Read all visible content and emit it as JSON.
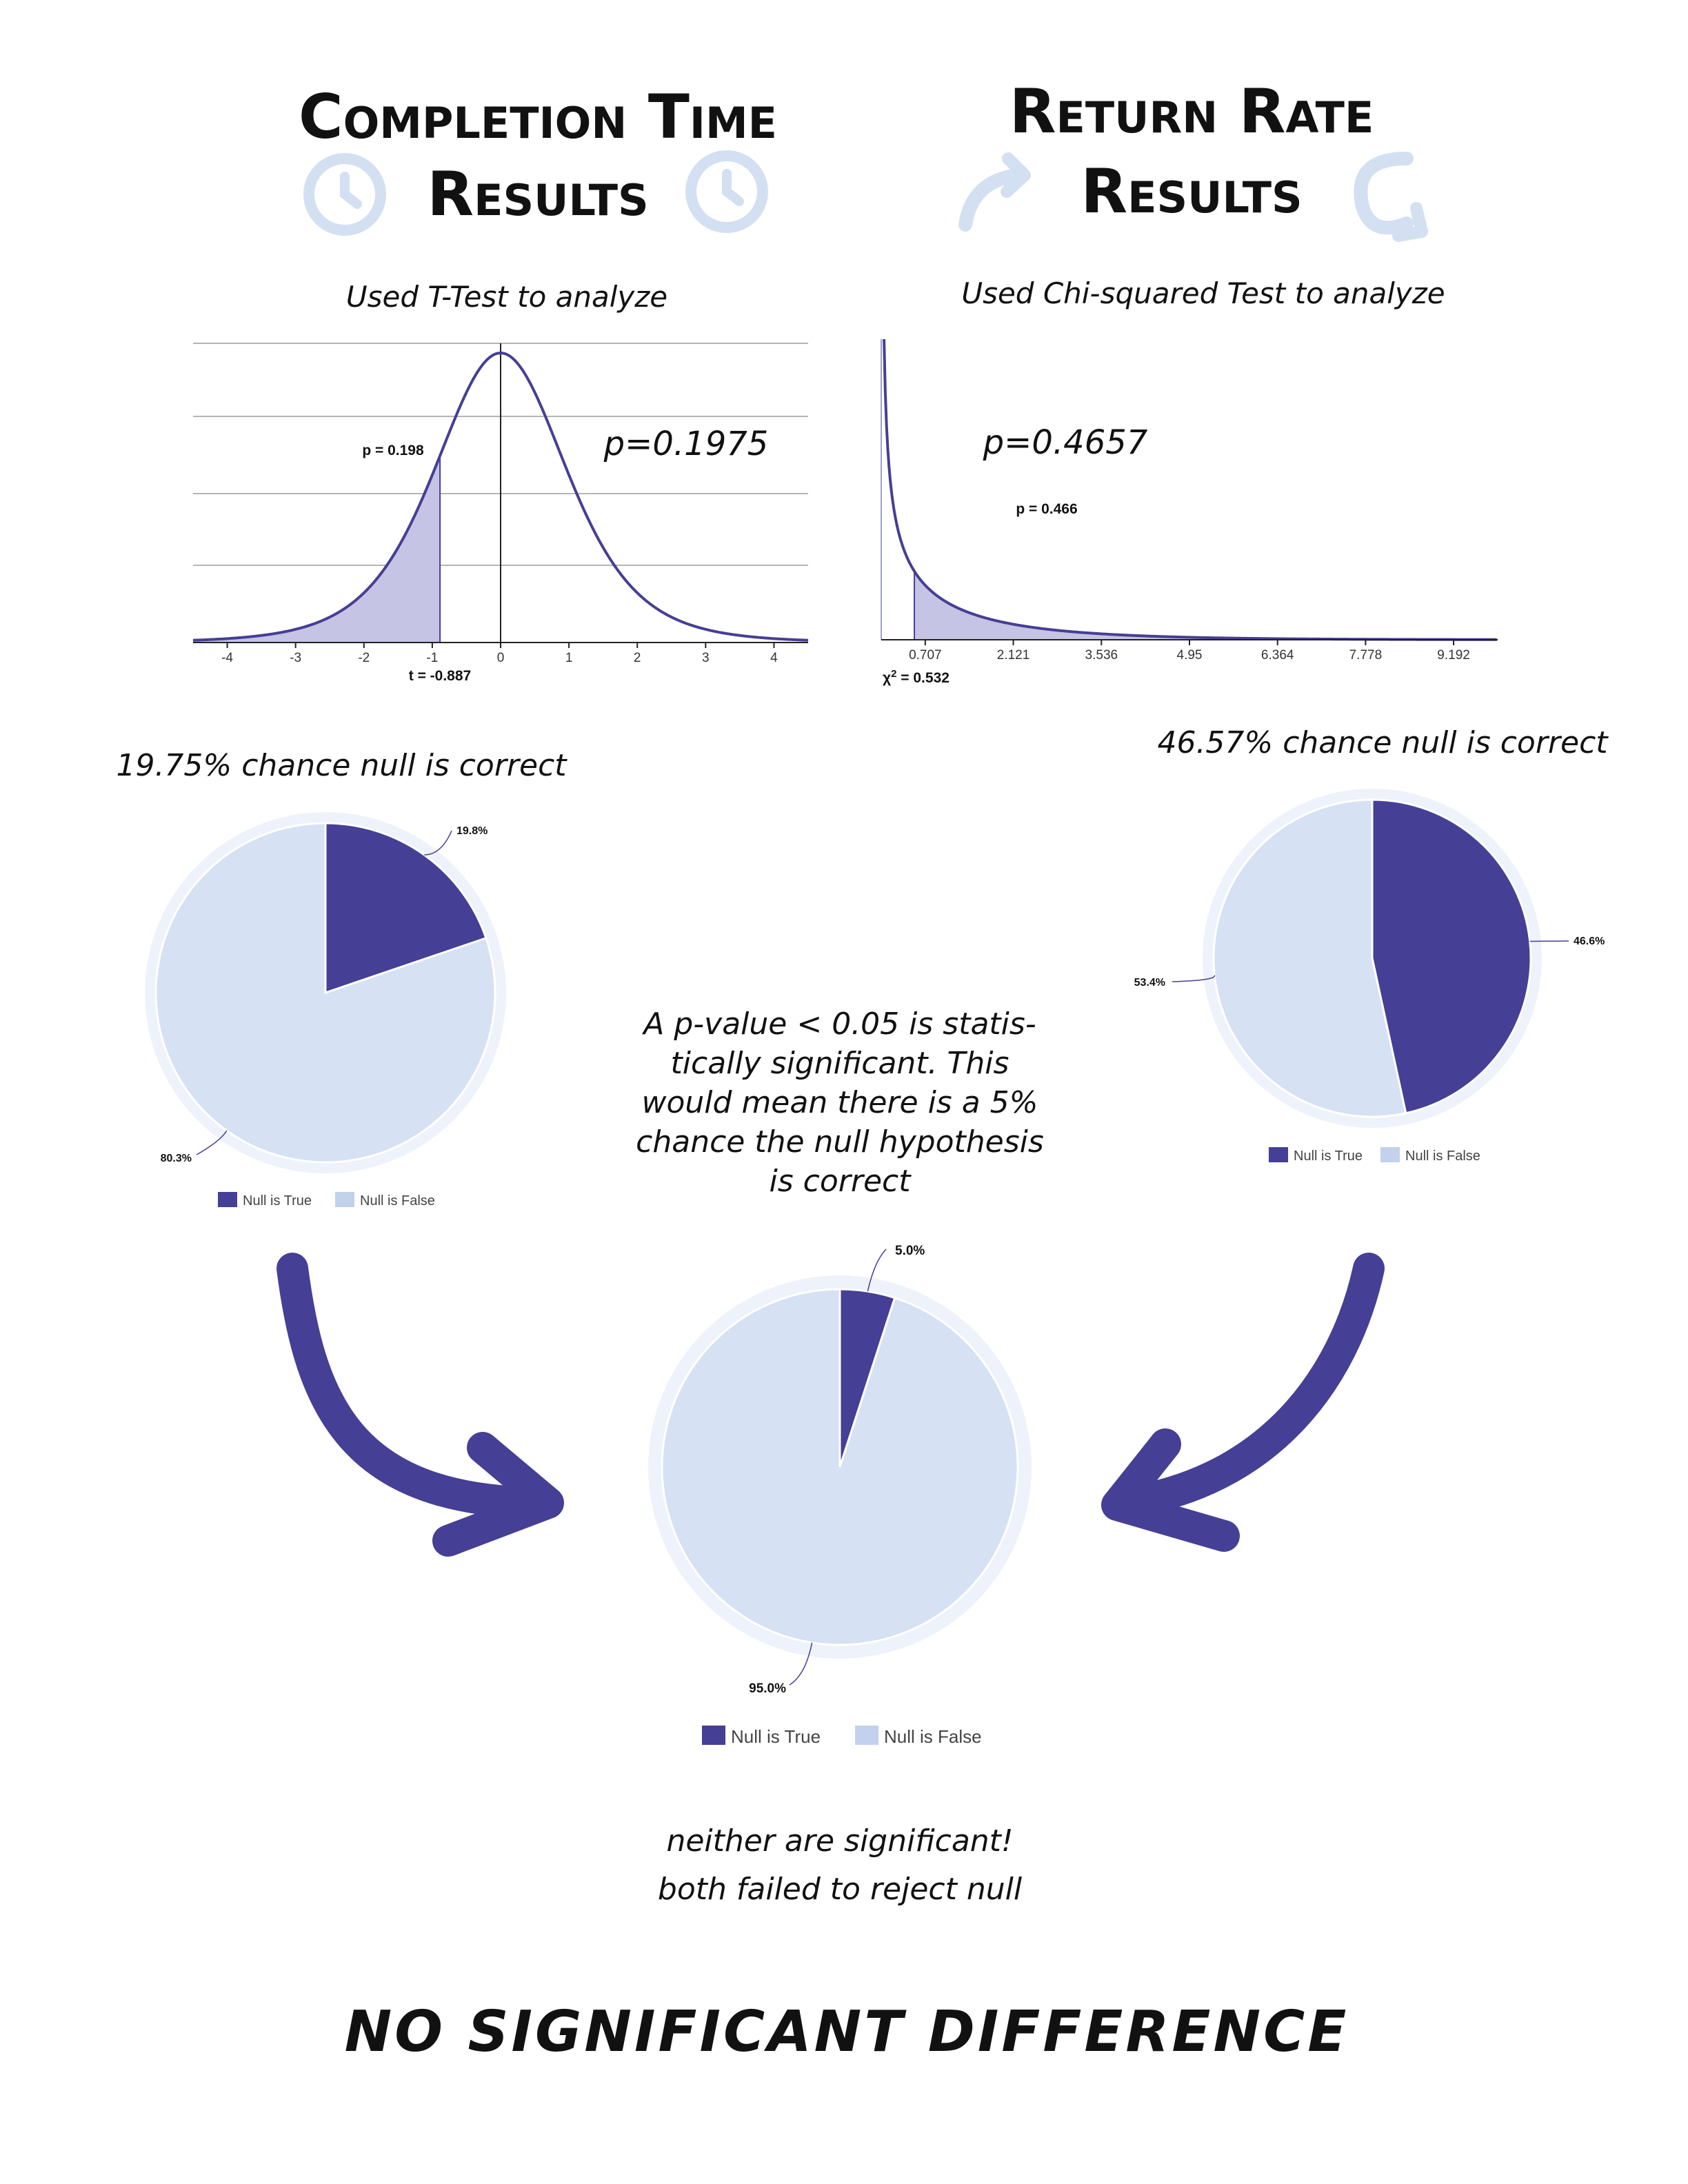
{
  "headings": {
    "completion_line1": "Completion Time",
    "completion_line2": "Results",
    "return_line1": "Return Rate",
    "return_line2": "Results"
  },
  "colors": {
    "dark": "#453f95",
    "light": "#d6e1f3",
    "ring": "#eef2fa",
    "icon": "#d3e0f2"
  },
  "icons": {
    "clock": "clock-icon",
    "refresh": "refresh-icon",
    "arrow": "curved-arrow-icon"
  },
  "notes": {
    "ttest": "Used T-Test to analyze",
    "chisq": "Used Chi-squared Test to analyze",
    "ttest_p": "p=0.1975",
    "chisq_p": "p=0.4657",
    "null_1975": "19.75% chance null is correct",
    "null_4657": "46.57% chance null is correct",
    "significance": [
      "A p-value < 0.05 is statis-",
      "tically significant. This",
      "would mean there is a 5%",
      "chance the null hypothesis",
      "is correct"
    ],
    "conclusion_1": "neither are significant!",
    "conclusion_2": "both failed to reject null",
    "final": "NO SIGNIFICANT DIFFERENCE"
  },
  "chart_data": [
    {
      "type": "line",
      "distribution": "t",
      "x_ticks": [
        "-4",
        "-3",
        "-2",
        "-1",
        "0",
        "1",
        "2",
        "3",
        "4"
      ],
      "xlim": [
        -4.5,
        4.5
      ],
      "shaded_upto": -0.887,
      "annotation": "p = 0.198",
      "stat_label": "t = -0.887",
      "grid": true
    },
    {
      "type": "line",
      "distribution": "chi-squared",
      "x_ticks": [
        "0.707",
        "2.121",
        "3.536",
        "4.95",
        "6.364",
        "7.778",
        "9.192"
      ],
      "xlim": [
        0,
        9.9
      ],
      "shaded_from": 0.532,
      "annotation": "p = 0.466",
      "stat_label_prefix": "χ",
      "stat_label_sup": "2",
      "stat_label_value": " = 0.532",
      "grid": false
    },
    {
      "type": "pie",
      "categories": [
        "Null is True",
        "Null is False"
      ],
      "values": [
        19.8,
        80.3
      ],
      "labels": [
        "19.8%",
        "80.3%"
      ]
    },
    {
      "type": "pie",
      "categories": [
        "Null is True",
        "Null is False"
      ],
      "values": [
        46.6,
        53.4
      ],
      "labels": [
        "46.6%",
        "53.4%"
      ]
    },
    {
      "type": "pie",
      "categories": [
        "Null is True",
        "Null is False"
      ],
      "values": [
        5.0,
        95.0
      ],
      "labels": [
        "5.0%",
        "95.0%"
      ]
    }
  ]
}
